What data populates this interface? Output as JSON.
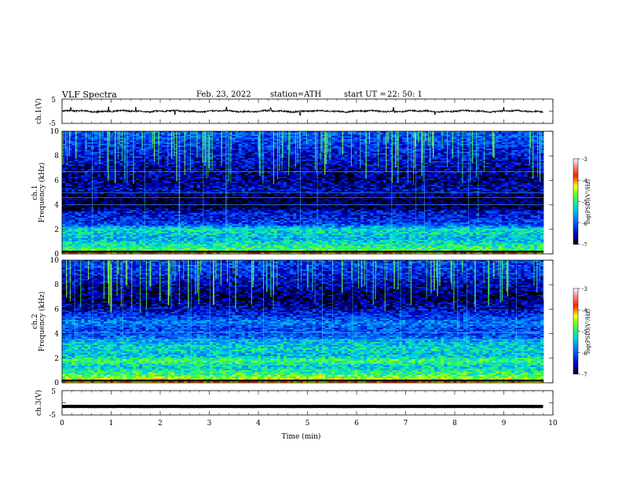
{
  "header": {
    "title": "VLF  Spectra",
    "date": "Feb. 23, 2022",
    "station": "station=ATH",
    "start_label": "start  UT  =",
    "start_time": "22: 50: 1"
  },
  "chart_data": [
    {
      "type": "line",
      "name": "ch1-waveform",
      "ylabel": "ch.1(V)",
      "ylim": [
        -5,
        5
      ],
      "yticks": [
        "5",
        "-5"
      ],
      "xlim": [
        0,
        10
      ],
      "x_end": 9.8,
      "baseline": 0,
      "noise_amplitude": 0.6,
      "spikes": [
        {
          "x": 0.18,
          "y": 1.5
        },
        {
          "x": 0.95,
          "y": 1.7
        },
        {
          "x": 1.5,
          "y": 1.6
        },
        {
          "x": 2.3,
          "y": -1.3
        },
        {
          "x": 3.35,
          "y": 1.7
        },
        {
          "x": 4.25,
          "y": 1.4
        },
        {
          "x": 4.85,
          "y": -1.6
        },
        {
          "x": 6.75,
          "y": 1.5
        },
        {
          "x": 7.6,
          "y": -1.4
        },
        {
          "x": 9.0,
          "y": 1.5
        }
      ]
    },
    {
      "type": "heatmap",
      "name": "ch1-spectrogram",
      "ylabel": "Frequency  (kHz)",
      "channel_label": "ch.1",
      "ylim": [
        0,
        10
      ],
      "yticks": [
        "0",
        "2",
        "4",
        "6",
        "8",
        "10"
      ],
      "xlim": [
        0,
        9.8
      ],
      "colorbar": {
        "label": "log(PSD)(V²/Hz)",
        "range": [
          -7,
          -3
        ],
        "ticks": [
          "-3",
          "-4",
          "-5",
          "-6",
          "-7"
        ]
      },
      "band_levels_khz": [
        [
          0.0,
          -3.9
        ],
        [
          0.3,
          -4.8
        ],
        [
          0.8,
          -5.2
        ],
        [
          1.2,
          -5.5
        ],
        [
          1.6,
          -5.4
        ],
        [
          2.0,
          -5.2
        ],
        [
          2.4,
          -6.1
        ],
        [
          2.8,
          -6.3
        ],
        [
          3.4,
          -6.4
        ],
        [
          3.8,
          -6.9
        ],
        [
          4.6,
          -6.9
        ],
        [
          5.2,
          -6.5
        ],
        [
          6.0,
          -6.7
        ],
        [
          7.0,
          -6.6
        ],
        [
          8.0,
          -6.4
        ],
        [
          9.0,
          -6.2
        ],
        [
          10.0,
          -6.0
        ]
      ],
      "tonal_lines_khz": [
        4.0,
        4.6,
        5.0,
        6.7
      ],
      "sferic_density": 0.55
    },
    {
      "type": "heatmap",
      "name": "ch2-spectrogram",
      "ylabel": "Frequency  (kHz)",
      "channel_label": "ch.2",
      "ylim": [
        0,
        10
      ],
      "yticks": [
        "0",
        "2",
        "4",
        "6",
        "8",
        "10"
      ],
      "xlim": [
        0,
        9.8
      ],
      "colorbar": {
        "label": "log(PSD)(V²/Hz)",
        "range": [
          -7,
          -3
        ],
        "ticks": [
          "-3",
          "-4",
          "-5",
          "-6",
          "-7"
        ]
      },
      "band_levels_khz": [
        [
          0.0,
          -4.0
        ],
        [
          0.4,
          -4.6
        ],
        [
          0.8,
          -5.0
        ],
        [
          1.3,
          -5.4
        ],
        [
          1.8,
          -4.8
        ],
        [
          2.2,
          -5.5
        ],
        [
          2.8,
          -5.3
        ],
        [
          3.3,
          -5.5
        ],
        [
          3.8,
          -6.0
        ],
        [
          4.4,
          -6.1
        ],
        [
          4.9,
          -5.8
        ],
        [
          5.4,
          -6.2
        ],
        [
          6.0,
          -6.5
        ],
        [
          6.8,
          -6.8
        ],
        [
          7.6,
          -6.7
        ],
        [
          8.6,
          -6.4
        ],
        [
          10.0,
          -6.1
        ]
      ],
      "tonal_lines_khz": [
        3.5,
        4.1
      ],
      "sferic_density": 0.5
    },
    {
      "type": "line",
      "name": "ch3-waveform",
      "ylabel": "ch.3(V)",
      "ylim": [
        -5,
        5
      ],
      "yticks": [
        "5",
        "-5"
      ],
      "xlim": [
        0,
        10
      ],
      "x_end": 9.8,
      "baseline": -1.5,
      "noise_amplitude": 0.05,
      "xlabel": "Time  (min)",
      "xticks": [
        "0",
        "1",
        "2",
        "3",
        "4",
        "5",
        "6",
        "7",
        "8",
        "9",
        "10"
      ]
    }
  ]
}
